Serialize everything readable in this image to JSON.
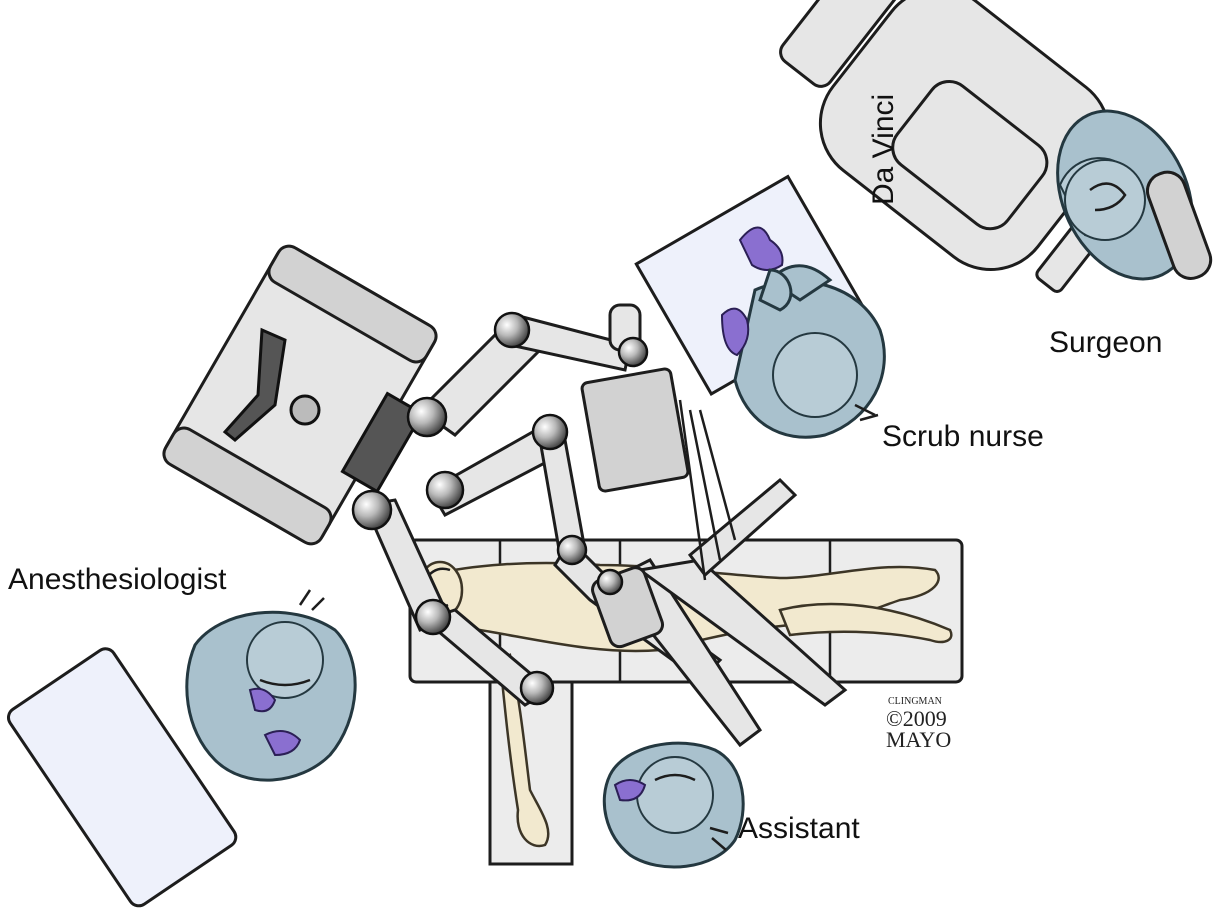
{
  "labels": {
    "console": "Da Vinci",
    "surgeon": "Surgeon",
    "scrub_nurse": "Scrub nurse",
    "anesthesiologist": "Anesthesiologist",
    "assistant": "Assistant"
  },
  "signature": {
    "artist": "CLINGMAN",
    "year": "©2009",
    "org": "MAYO"
  },
  "colors": {
    "gown": "#a9c1cd",
    "glove": "#8a6fd0",
    "skin": "#f2e9cf",
    "equipment": "#e6e6e6",
    "tray": "#eef1fb"
  }
}
